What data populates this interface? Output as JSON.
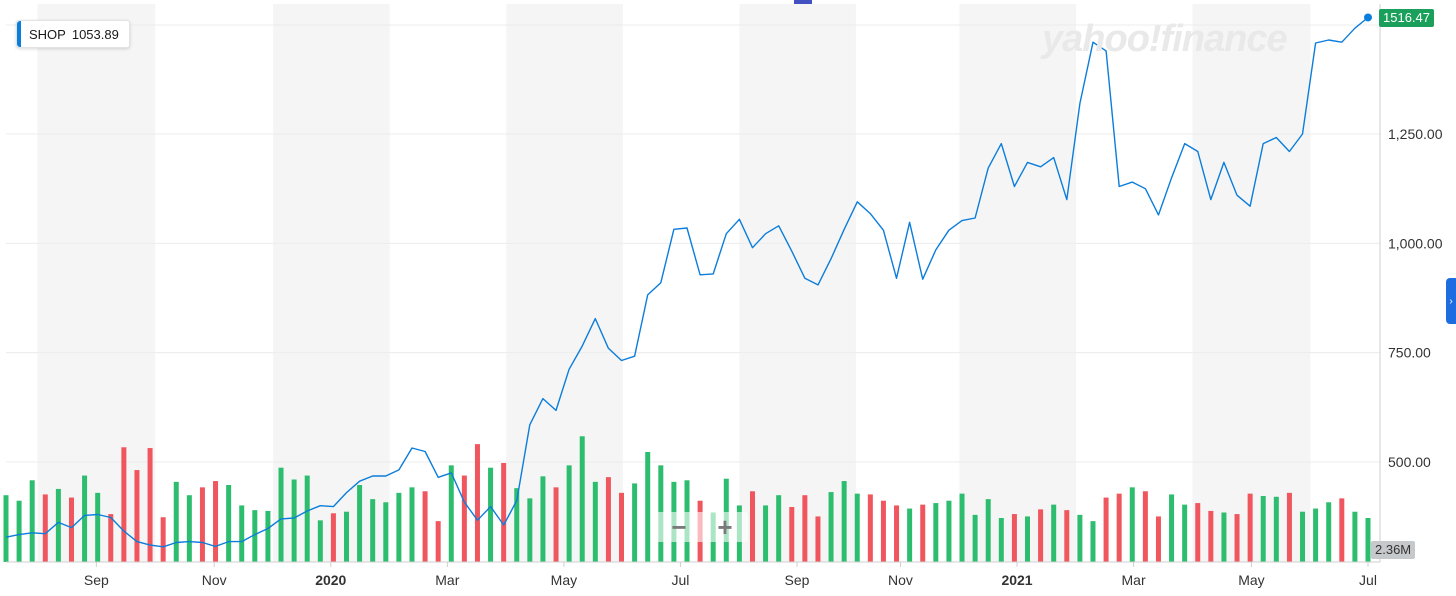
{
  "tooltip": {
    "symbol": "SHOP",
    "value": "1053.89"
  },
  "logo_text": "yahoo!finance",
  "price_badge": "1516.47",
  "volume_badge": "2.36M",
  "zoom": {
    "minus": "−",
    "plus": "+"
  },
  "colors": {
    "line": "#0b7ddb",
    "up": "#2dbd6e",
    "down": "#f0565e",
    "accent": "#1aa05a"
  },
  "chart_data": {
    "type": "line",
    "title": "",
    "xlabel": "",
    "ylabel": "",
    "ylim": [
      280,
      1540
    ],
    "yticks": [
      500,
      750,
      1000,
      1250
    ],
    "ytick_labels": [
      "500.00",
      "750.00",
      "1,000.00",
      "1,250.00"
    ],
    "xtick_labels": [
      "Sep",
      "Nov",
      "2020",
      "Mar",
      "May",
      "Jul",
      "Sep",
      "Nov",
      "2021",
      "Mar",
      "May",
      "Jul"
    ],
    "xtick_index": [
      6.9,
      15.9,
      24.8,
      33.7,
      42.6,
      51.5,
      60.4,
      68.3,
      77.2,
      86.1,
      95.1,
      104.0
    ],
    "grid": true,
    "price": [
      328,
      334,
      338,
      336,
      362,
      350,
      378,
      380,
      373,
      342,
      318,
      310,
      306,
      316,
      318,
      316,
      307,
      318,
      318,
      334,
      348,
      370,
      372,
      388,
      400,
      398,
      430,
      456,
      468,
      468,
      482,
      532,
      524,
      465,
      475,
      408,
      367,
      398,
      356,
      412,
      585,
      645,
      618,
      712,
      765,
      828,
      760,
      732,
      742,
      882,
      910,
      1032,
      1035,
      928,
      930,
      1022,
      1055,
      990,
      1022,
      1040,
      982,
      920,
      905,
      965,
      1032,
      1095,
      1068,
      1030,
      920,
      1048,
      918,
      985,
      1030,
      1052,
      1058,
      1172,
      1228,
      1130,
      1185,
      1175,
      1196,
      1100,
      1320,
      1460,
      1440,
      1130,
      1140,
      1125,
      1065,
      1150,
      1228,
      1210,
      1100,
      1185,
      1110,
      1085,
      1228,
      1242,
      1210,
      1250,
      1458,
      1465,
      1460,
      1492,
      1516.47
    ],
    "volume": [
      85,
      78,
      104,
      86,
      93,
      82,
      110,
      88,
      61,
      146,
      117,
      145,
      57,
      102,
      85,
      95,
      103,
      98,
      72,
      66,
      65,
      120,
      105,
      110,
      53,
      62,
      64,
      98,
      80,
      76,
      88,
      95,
      90,
      52,
      123,
      110,
      150,
      120,
      126,
      94,
      81,
      109,
      95,
      123,
      160,
      102,
      108,
      88,
      100,
      140,
      123,
      102,
      104,
      78,
      63,
      106,
      72,
      90,
      72,
      85,
      70,
      85,
      58,
      89,
      103,
      87,
      86,
      78,
      72,
      68,
      73,
      75,
      78,
      87,
      60,
      80,
      56,
      61,
      58,
      67,
      73,
      66,
      60,
      52,
      82,
      87,
      95,
      90,
      58,
      86,
      73,
      75,
      65,
      63,
      61,
      87,
      84,
      83,
      88,
      64,
      68,
      76,
      81,
      64,
      56
    ]
  }
}
